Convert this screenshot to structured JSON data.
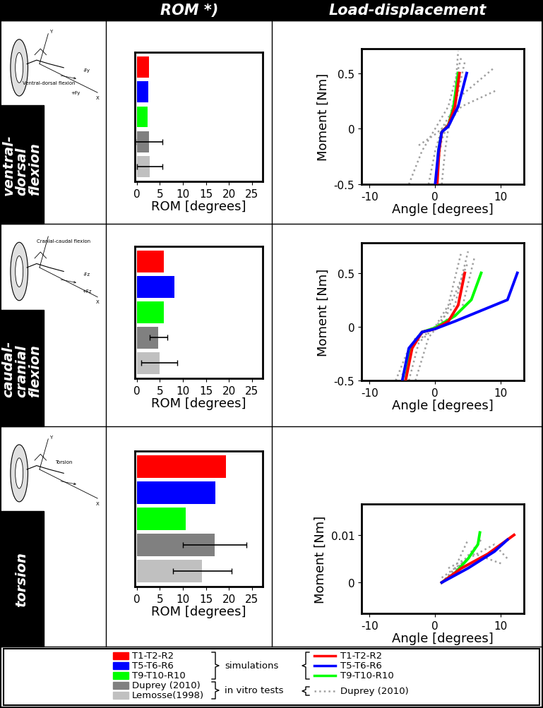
{
  "header": {
    "columns": [
      "ROM *)",
      "Load-displacement"
    ]
  },
  "rows": [
    {
      "label_lines": [
        "ventral-",
        "dorsal",
        "flexion"
      ],
      "illustration": {
        "labels": [
          "Y",
          "Ventral-dorsal flexion",
          "-Fy",
          "+Fy",
          "X"
        ]
      }
    },
    {
      "label_lines": [
        "caudal-",
        "cranial",
        "flexion"
      ],
      "illustration": {
        "labels": [
          "Cranial-caudal flexion",
          "-Fz",
          "+Fz",
          "X"
        ]
      }
    },
    {
      "label_lines": [
        "torsion"
      ],
      "illustration": {
        "labels": [
          "Y",
          "Torsion",
          "X"
        ]
      }
    }
  ],
  "chart_data": [
    {
      "type": "bar",
      "orientation": "horizontal",
      "categories": [
        null,
        null,
        null,
        null,
        null
      ],
      "values": [
        2.7,
        2.5,
        2.3,
        2.6,
        2.8
      ],
      "error": [
        null,
        null,
        null,
        2.9,
        2.8
      ],
      "colors": [
        "#ff0000",
        "#0000ff",
        "#00ff00",
        "#808080",
        "#c0c0c0"
      ],
      "xlabel": "ROM [degrees]",
      "xlim": [
        -0.4,
        27.3
      ],
      "xticks": [
        0,
        5,
        10,
        15,
        20,
        25
      ],
      "tick_labels": "x"
    },
    {
      "type": "line",
      "xlabel": "Angle [degrees]",
      "ylabel": "Moment [Nm]",
      "xlim": [
        -11.2,
        13.5
      ],
      "xticks": [
        -10,
        0,
        10
      ],
      "ylim": [
        -0.5,
        0.72
      ],
      "yticks": [
        -0.5,
        0,
        0.5
      ],
      "series": [
        {
          "name": "Duprey (2010)",
          "color": "#a0a0a0",
          "line_style": "dotted",
          "curves": [
            {
              "x": [
                -4,
                -2,
                0,
                2,
                4
              ],
              "y": [
                -0.5,
                -0.2,
                0,
                0.2,
                0.65
              ]
            },
            {
              "x": [
                -1,
                0,
                1,
                3,
                4.5
              ],
              "y": [
                -0.5,
                -0.2,
                0,
                0.2,
                0.6
              ]
            },
            {
              "x": [
                1,
                1.5,
                2,
                4,
                5,
                9
              ],
              "y": [
                -0.5,
                -0.2,
                0,
                0.3,
                0.35,
                0.55
              ]
            },
            {
              "x": [
                -2.5,
                0,
                2,
                4,
                9.5
              ],
              "y": [
                -0.15,
                -0.05,
                0.05,
                0.2,
                0.35
              ]
            },
            {
              "x": [
                0,
                1,
                2,
                3,
                3.5
              ],
              "y": [
                -0.5,
                -0.1,
                0.05,
                0.3,
                0.7
              ]
            }
          ]
        },
        {
          "name": "T9-T10-R10",
          "color": "#00ff00",
          "line_style": "solid",
          "x": [
            0.2,
            0.5,
            1,
            2,
            2.8,
            3.5
          ],
          "y": [
            -0.5,
            -0.2,
            -0.03,
            0.03,
            0.2,
            0.5
          ]
        },
        {
          "name": "T1-T2-R2",
          "color": "#ff0000",
          "line_style": "solid",
          "x": [
            0.3,
            0.6,
            1,
            2,
            3,
            3.7
          ],
          "y": [
            -0.5,
            -0.2,
            -0.03,
            0.03,
            0.2,
            0.5
          ]
        },
        {
          "name": "T5-T6-R6",
          "color": "#0000ff",
          "line_style": "solid",
          "x": [
            0,
            0.5,
            1,
            2,
            3.5,
            4.8
          ],
          "y": [
            -0.5,
            -0.2,
            -0.03,
            0.02,
            0.2,
            0.5
          ]
        }
      ]
    },
    {
      "type": "bar",
      "orientation": "horizontal",
      "categories": [
        null,
        null,
        null,
        null,
        null
      ],
      "values": [
        5.8,
        8.1,
        5.8,
        4.7,
        4.9
      ],
      "error": [
        null,
        null,
        null,
        1.9,
        3.9
      ],
      "colors": [
        "#ff0000",
        "#0000ff",
        "#00ff00",
        "#808080",
        "#c0c0c0"
      ],
      "xlabel": "ROM [degrees]",
      "xlim": [
        -0.4,
        27.3
      ],
      "xticks": [
        0,
        5,
        10,
        15,
        20,
        25
      ],
      "tick_labels": "x"
    },
    {
      "type": "line",
      "xlabel": "Angle [degrees]",
      "ylabel": "Moment [Nm]",
      "xlim": [
        -11.2,
        13.5
      ],
      "xticks": [
        -10,
        0,
        10
      ],
      "ylim": [
        -0.5,
        0.78
      ],
      "yticks": [
        -0.5,
        0,
        0.5
      ],
      "series": [
        {
          "name": "Duprey (2010)",
          "color": "#a0a0a0",
          "line_style": "dotted",
          "curves": [
            {
              "x": [
                -6,
                -4,
                0,
                2,
                4
              ],
              "y": [
                -0.5,
                -0.2,
                0,
                0.2,
                0.7
              ]
            },
            {
              "x": [
                -4,
                -2.5,
                0,
                3,
                5
              ],
              "y": [
                -0.5,
                -0.15,
                0,
                0.2,
                0.7
              ]
            },
            {
              "x": [
                -3,
                -1,
                1,
                3,
                5
              ],
              "y": [
                -0.5,
                -0.1,
                0.05,
                0.3,
                0.6
              ]
            },
            {
              "x": [
                -5,
                -3,
                0,
                4,
                6
              ],
              "y": [
                -0.45,
                -0.1,
                0,
                0.15,
                0.65
              ]
            }
          ]
        },
        {
          "name": "T9-T10-R10",
          "color": "#00ff00",
          "line_style": "solid",
          "x": [
            -4.5,
            -3.8,
            -2,
            0,
            3,
            5.5,
            7
          ],
          "y": [
            -0.5,
            -0.2,
            -0.05,
            -0.01,
            0.1,
            0.25,
            0.5
          ]
        },
        {
          "name": "T1-T2-R2",
          "color": "#ff0000",
          "line_style": "solid",
          "x": [
            -4.5,
            -3.5,
            -2,
            0,
            2,
            3.5,
            4.5
          ],
          "y": [
            -0.5,
            -0.2,
            -0.05,
            -0.02,
            0.05,
            0.2,
            0.5
          ]
        },
        {
          "name": "T5-T6-R6",
          "color": "#0000ff",
          "line_style": "solid",
          "x": [
            -5,
            -4,
            -2,
            0,
            3,
            7,
            11,
            12.5
          ],
          "y": [
            -0.5,
            -0.2,
            -0.05,
            -0.02,
            0.05,
            0.15,
            0.25,
            0.5
          ]
        }
      ]
    },
    {
      "type": "bar",
      "orientation": "horizontal",
      "categories": [
        null,
        null,
        null,
        null,
        null
      ],
      "values": [
        19.4,
        17.0,
        10.6,
        16.9,
        14.2
      ],
      "error": [
        null,
        null,
        null,
        6.9,
        6.4
      ],
      "colors": [
        "#ff0000",
        "#0000ff",
        "#00ff00",
        "#808080",
        "#c0c0c0"
      ],
      "xlabel": "ROM [degrees]",
      "xlim": [
        -0.4,
        27.3
      ],
      "xticks": [
        0,
        5,
        10,
        15,
        20,
        25
      ],
      "tick_labels": "x"
    },
    {
      "type": "line",
      "xlabel": "Angle [degrees]",
      "ylabel": "Moment [Nm]",
      "xlim": [
        -11.2,
        13.5
      ],
      "xticks": [
        -10,
        0,
        10
      ],
      "ylim": [
        -0.0065,
        0.0165
      ],
      "yticks": [
        0,
        0.01
      ],
      "series": [
        {
          "name": "Duprey (2010)",
          "color": "#a0a0a0",
          "line_style": "dotted",
          "curves": [
            {
              "x": [
                1,
                4,
                7
              ],
              "y": [
                0,
                0.004,
                0.009
              ]
            },
            {
              "x": [
                1,
                5,
                9,
                11
              ],
              "y": [
                0.001,
                0.005,
                0.008,
                0.005
              ]
            },
            {
              "x": [
                2,
                6,
                10
              ],
              "y": [
                0.003,
                0.006,
                0.004
              ]
            },
            {
              "x": [
                1,
                3,
                5
              ],
              "y": [
                0,
                0.003,
                0.009
              ]
            }
          ]
        },
        {
          "name": "T9-T10-R10",
          "color": "#00ff00",
          "line_style": "solid",
          "x": [
            1,
            3,
            5,
            6.5,
            6.8
          ],
          "y": [
            0,
            0.002,
            0.005,
            0.008,
            0.0105
          ]
        },
        {
          "name": "T1-T2-R2",
          "color": "#ff0000",
          "line_style": "solid",
          "x": [
            1,
            4,
            8,
            12
          ],
          "y": [
            0,
            0.003,
            0.006,
            0.01
          ]
        },
        {
          "name": "T5-T6-R6",
          "color": "#0000ff",
          "line_style": "solid",
          "x": [
            1,
            5,
            9,
            11
          ],
          "y": [
            0,
            0.003,
            0.0065,
            0.009
          ]
        }
      ]
    }
  ],
  "legend": {
    "bar_entries": [
      {
        "name": "T1-T2-R2",
        "color": "#ff0000"
      },
      {
        "name": "T5-T6-R6",
        "color": "#0000ff"
      },
      {
        "name": "T9-T10-R10",
        "color": "#00ff00"
      },
      {
        "name": "Duprey (2010)",
        "color": "#808080"
      },
      {
        "name": "Lemosse(1998)",
        "color": "#c0c0c0"
      }
    ],
    "line_entries": [
      {
        "name": "T1-T2-R2",
        "color": "#ff0000",
        "line_style": "solid"
      },
      {
        "name": "T5-T6-R6",
        "color": "#0000ff",
        "line_style": "solid"
      },
      {
        "name": "T9-T10-R10",
        "color": "#00ff00",
        "line_style": "solid"
      },
      {
        "name": "Duprey (2010)",
        "color": "#a0a0a0",
        "line_style": "dotted"
      }
    ],
    "groups": [
      "simulations",
      "in vitro tests"
    ]
  }
}
